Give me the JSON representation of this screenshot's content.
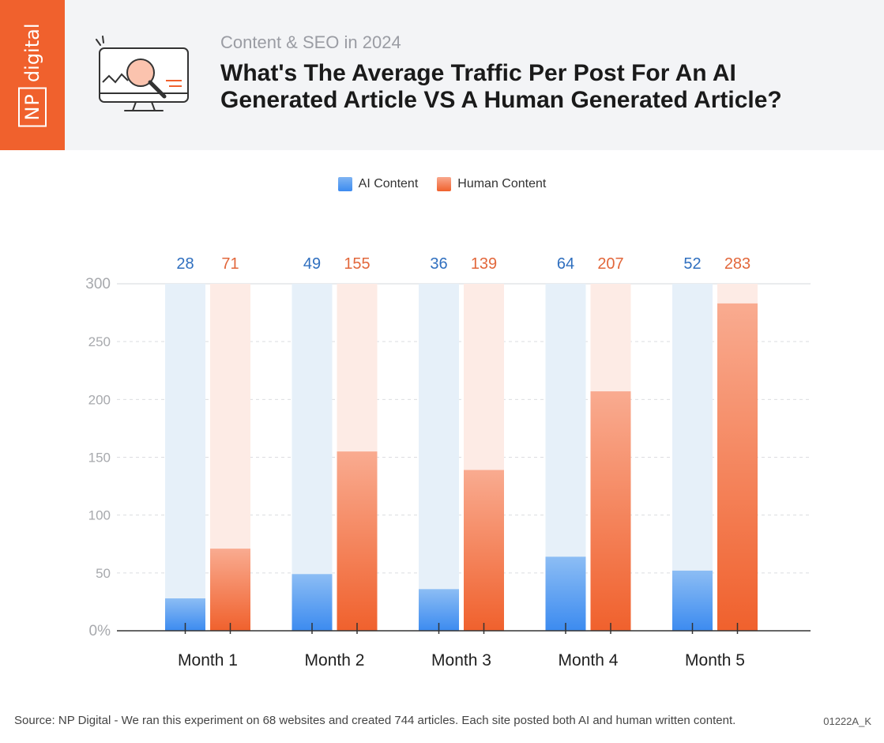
{
  "logo": {
    "np": "NP",
    "word": "digital"
  },
  "header": {
    "subtitle": "Content & SEO in 2024",
    "title_line1": "What's The Average Traffic Per Post For An AI",
    "title_line2": "Generated Article VS A Human Generated Article?"
  },
  "colors": {
    "ai": "#3c8bf0",
    "ai_label": "#2f6fbf",
    "ai_track": "#e6f0f9",
    "human": "#f0612d",
    "human_label": "#e2673b",
    "human_track": "#fdebe5"
  },
  "chart_data": {
    "type": "bar",
    "categories": [
      "Month 1",
      "Month 2",
      "Month 3",
      "Month 4",
      "Month 5"
    ],
    "series": [
      {
        "name": "AI Content",
        "values": [
          28,
          49,
          36,
          64,
          52
        ]
      },
      {
        "name": "Human Content",
        "values": [
          71,
          155,
          139,
          207,
          283
        ]
      }
    ],
    "ylim": [
      0,
      300
    ],
    "yticks": [
      "0%",
      "50",
      "100",
      "150",
      "200",
      "250",
      "300"
    ],
    "legend_position": "top-center",
    "grid": true
  },
  "footer": {
    "source": "Source: NP Digital - We ran this experiment on 68 websites and created 744 articles. Each site posted both AI and human written content.",
    "code": "01222A_K"
  }
}
